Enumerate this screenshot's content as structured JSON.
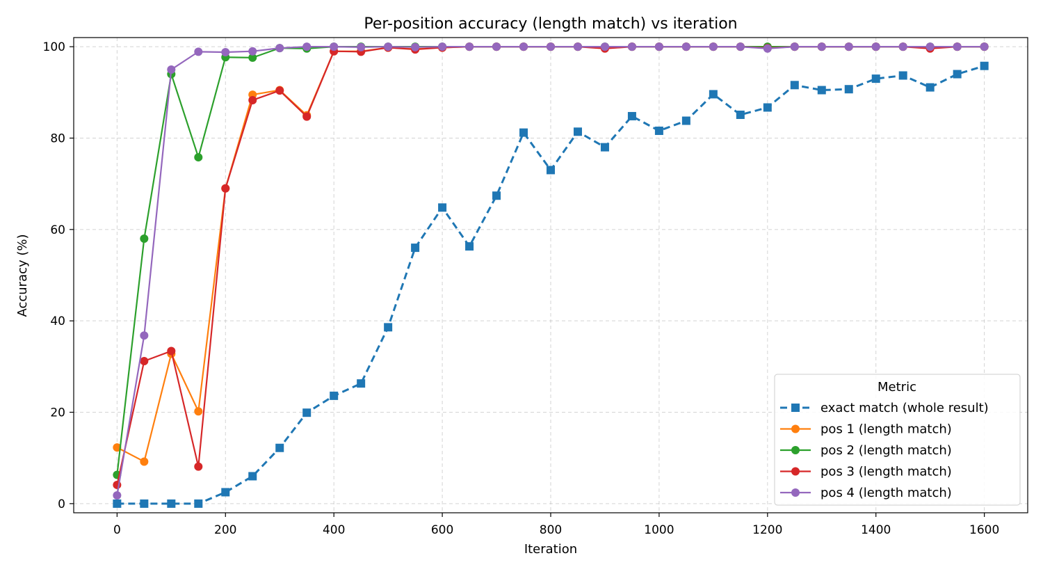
{
  "chart_data": {
    "type": "line",
    "title": "Per-position accuracy (length match) vs iteration",
    "xlabel": "Iteration",
    "ylabel": "Accuracy (%)",
    "xlim": [
      -80,
      1680
    ],
    "ylim": [
      -2,
      102
    ],
    "xticks": [
      0,
      200,
      400,
      600,
      800,
      1000,
      1200,
      1400,
      1600
    ],
    "yticks": [
      0,
      20,
      40,
      60,
      80,
      100
    ],
    "grid": true,
    "legend": {
      "title": "Metric",
      "position": "lower-right"
    },
    "x": [
      0,
      50,
      100,
      150,
      200,
      250,
      300,
      350,
      400,
      450,
      500,
      550,
      600,
      650,
      700,
      750,
      800,
      850,
      900,
      950,
      1000,
      1050,
      1100,
      1150,
      1200,
      1250,
      1300,
      1350,
      1400,
      1450,
      1500,
      1550,
      1600
    ],
    "series": [
      {
        "name": "exact match (whole result)",
        "color": "#1f77b4",
        "marker": "square",
        "dashed": true,
        "values": [
          0,
          0,
          0,
          0,
          2.5,
          6,
          12.2,
          19.9,
          23.6,
          26.3,
          38.6,
          56,
          64.8,
          56.3,
          67.4,
          81.2,
          73,
          81.4,
          78,
          84.8,
          81.6,
          83.8,
          89.6,
          85.1,
          86.7,
          91.6,
          90.5,
          90.7,
          93,
          93.7,
          91.1,
          94,
          95.8
        ]
      },
      {
        "name": "pos 1 (length match)",
        "color": "#ff7f0e",
        "marker": "circle",
        "dashed": false,
        "values": [
          12.3,
          9.2,
          32.8,
          20.2,
          69,
          89.5,
          90.5,
          85,
          99,
          99,
          99.8,
          99.5,
          99.8,
          100,
          100,
          100,
          100,
          100,
          99.8,
          100,
          100,
          100,
          100,
          100,
          99.8,
          100,
          100,
          100,
          100,
          100,
          99.8,
          100,
          100
        ]
      },
      {
        "name": "pos 2 (length match)",
        "color": "#2ca02c",
        "marker": "circle",
        "dashed": false,
        "values": [
          6.3,
          58,
          94,
          75.8,
          97.7,
          97.6,
          99.7,
          99.6,
          100,
          100,
          100,
          100,
          100,
          100,
          100,
          100,
          100,
          100,
          100,
          100,
          100,
          100,
          100,
          100,
          100,
          100,
          100,
          100,
          100,
          100,
          100,
          100,
          100
        ]
      },
      {
        "name": "pos 3 (length match)",
        "color": "#d62728",
        "marker": "circle",
        "dashed": false,
        "values": [
          4.1,
          31.2,
          33.4,
          8.1,
          69,
          88.3,
          90.4,
          84.7,
          99,
          98.9,
          99.8,
          99.4,
          99.8,
          100,
          100,
          100,
          100,
          100,
          99.6,
          100,
          100,
          100,
          100,
          100,
          99.7,
          100,
          100,
          100,
          100,
          100,
          99.6,
          100,
          100
        ]
      },
      {
        "name": "pos 4 (length match)",
        "color": "#9467bd",
        "marker": "circle",
        "dashed": false,
        "values": [
          1.8,
          36.8,
          95,
          98.9,
          98.8,
          99,
          99.7,
          100,
          100,
          99.9,
          100,
          99.9,
          100,
          100,
          100,
          100,
          100,
          100,
          100,
          100,
          100,
          100,
          100,
          100,
          99.6,
          100,
          100,
          100,
          100,
          100,
          100,
          100,
          100
        ]
      }
    ]
  }
}
